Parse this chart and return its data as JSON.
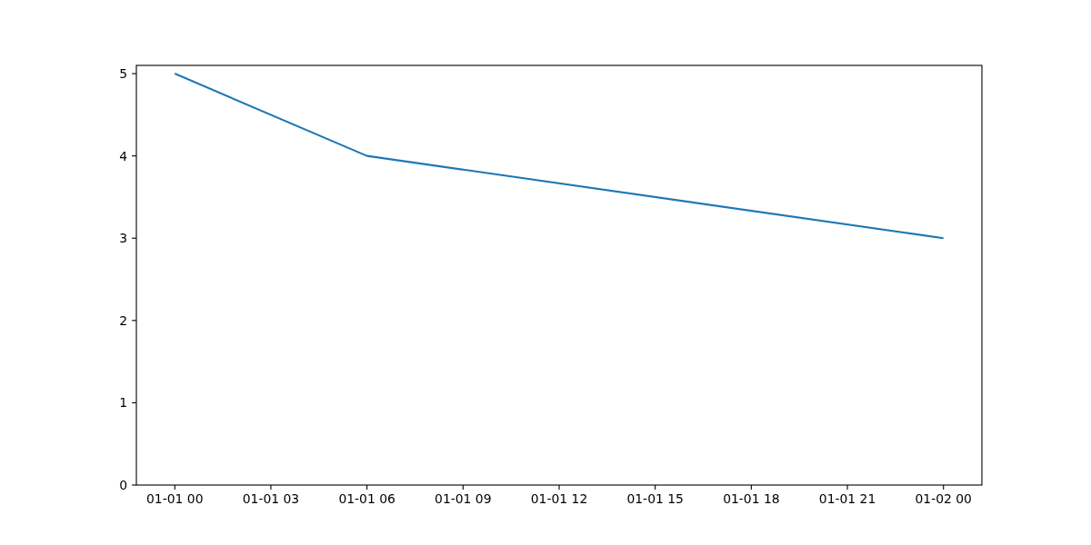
{
  "chart_data": {
    "type": "line",
    "x": [
      "2000-01-01T00:00",
      "2000-01-01T06:00",
      "2000-01-02T00:00"
    ],
    "values": [
      5,
      4,
      3
    ],
    "color": "#1f77b4",
    "xlim": [
      "1999-12-31T22:48",
      "2000-01-02T01:12"
    ],
    "ylim": [
      0,
      5.1
    ],
    "xticks": [
      {
        "value": "2000-01-01T00:00",
        "label": "01-01 00"
      },
      {
        "value": "2000-01-01T03:00",
        "label": "01-01 03"
      },
      {
        "value": "2000-01-01T06:00",
        "label": "01-01 06"
      },
      {
        "value": "2000-01-01T09:00",
        "label": "01-01 09"
      },
      {
        "value": "2000-01-01T12:00",
        "label": "01-01 12"
      },
      {
        "value": "2000-01-01T15:00",
        "label": "01-01 15"
      },
      {
        "value": "2000-01-01T18:00",
        "label": "01-01 18"
      },
      {
        "value": "2000-01-01T21:00",
        "label": "01-01 21"
      },
      {
        "value": "2000-01-02T00:00",
        "label": "01-02 00"
      }
    ],
    "yticks": [
      0,
      1,
      2,
      3,
      4,
      5
    ]
  }
}
